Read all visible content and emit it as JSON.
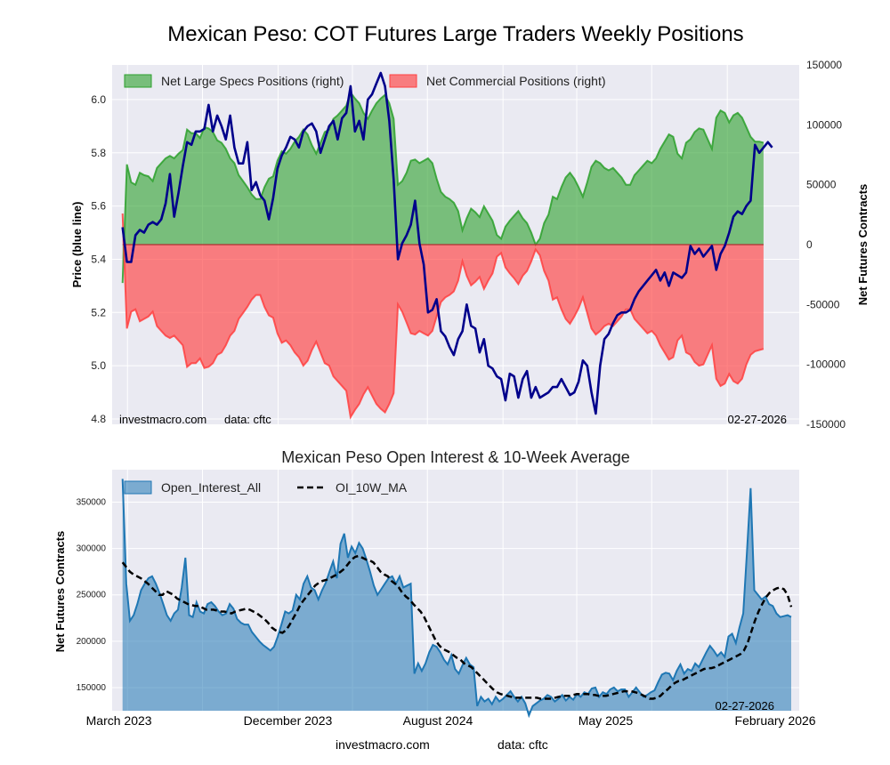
{
  "page": {
    "watermark": "investmacro.com",
    "data_note": "data: cftc",
    "date_stamp": "02-27-2026",
    "footer_site": "investmacro.com",
    "footer_data": "data: cftc"
  },
  "chart_data": [
    {
      "type": "area",
      "title": "Mexican Peso: COT Futures Large Traders Weekly Positions",
      "ylabel_left": "Price (blue line)",
      "ylabel_right": "Net Futures Contracts",
      "ylim_left": [
        4.78,
        6.13
      ],
      "ylim_right": [
        -150000,
        150000
      ],
      "yticks_left": [
        "4.8",
        "5.0",
        "5.2",
        "5.4",
        "5.6",
        "5.8",
        "6.0"
      ],
      "yticks_right": [
        "150000",
        "100000",
        "50000",
        "0",
        "-50000",
        "-100000",
        "-150000"
      ],
      "legend_position": "top-left",
      "grid": true,
      "x_start": "2023-03-07",
      "x_step_days": 7,
      "series": [
        {
          "name": "Net Large Specs Positions (right)",
          "color": "#2ca02c",
          "values": [
            -32000,
            67000,
            52000,
            50000,
            60000,
            58000,
            57000,
            53000,
            64000,
            68000,
            72000,
            74000,
            72000,
            76000,
            79000,
            96000,
            93000,
            93000,
            89000,
            98000,
            97000,
            94000,
            87000,
            85000,
            80000,
            72000,
            68000,
            58000,
            53000,
            48000,
            42000,
            38000,
            38000,
            48000,
            55000,
            57000,
            70000,
            78000,
            76000,
            80000,
            86000,
            90000,
            96000,
            92000,
            83000,
            76000,
            85000,
            94000,
            96000,
            105000,
            108000,
            112000,
            116000,
            127000,
            122000,
            118000,
            110000,
            105000,
            112000,
            118000,
            122000,
            125000,
            118000,
            105000,
            50000,
            53000,
            60000,
            70000,
            71000,
            68000,
            70000,
            72000,
            68000,
            55000,
            44000,
            40000,
            38000,
            35000,
            28000,
            12000,
            22000,
            30000,
            27000,
            23000,
            32000,
            26000,
            20000,
            8000,
            5000,
            15000,
            20000,
            24000,
            28000,
            22000,
            18000,
            10000,
            0,
            5000,
            18000,
            25000,
            40000,
            38000,
            48000,
            56000,
            60000,
            55000,
            48000,
            40000,
            52000,
            65000,
            70000,
            68000,
            64000,
            62000,
            64000,
            60000,
            56000,
            50000,
            50000,
            58000,
            62000,
            66000,
            70000,
            68000,
            72000,
            80000,
            86000,
            92000,
            90000,
            76000,
            72000,
            85000,
            88000,
            94000,
            97000,
            96000,
            88000,
            80000,
            106000,
            112000,
            110000,
            102000,
            108000,
            110000,
            106000,
            98000,
            90000,
            86000,
            86000,
            85000
          ]
        },
        {
          "name": "Net Commercial Positions (right)",
          "color": "#ff4040",
          "values": [
            26000,
            -70000,
            -56000,
            -54000,
            -64000,
            -62000,
            -60000,
            -56000,
            -68000,
            -72000,
            -76000,
            -78000,
            -76000,
            -80000,
            -84000,
            -102000,
            -99000,
            -99000,
            -95000,
            -103000,
            -102000,
            -99000,
            -92000,
            -90000,
            -84000,
            -76000,
            -72000,
            -62000,
            -57000,
            -52000,
            -46000,
            -42000,
            -42000,
            -52000,
            -59000,
            -61000,
            -74000,
            -82000,
            -80000,
            -84000,
            -90000,
            -94000,
            -101000,
            -97000,
            -88000,
            -81000,
            -90000,
            -99000,
            -101000,
            -110000,
            -114000,
            -118000,
            -122000,
            -144000,
            -138000,
            -133000,
            -125000,
            -119000,
            -126000,
            -133000,
            -137000,
            -140000,
            -133000,
            -124000,
            -50000,
            -56000,
            -65000,
            -74000,
            -75000,
            -72000,
            -74000,
            -76000,
            -72000,
            -60000,
            -48000,
            -44000,
            -42000,
            -39000,
            -30000,
            -14000,
            -26000,
            -34000,
            -31000,
            -27000,
            -37000,
            -30000,
            -24000,
            -10000,
            -7000,
            -19000,
            -24000,
            -28000,
            -33000,
            -26000,
            -22000,
            -14000,
            -4000,
            -9000,
            -22000,
            -30000,
            -46000,
            -44000,
            -54000,
            -62000,
            -66000,
            -60000,
            -53000,
            -44000,
            -57000,
            -70000,
            -75000,
            -72000,
            -68000,
            -66000,
            -68000,
            -64000,
            -60000,
            -54000,
            -54000,
            -62000,
            -66000,
            -70000,
            -74000,
            -72000,
            -76000,
            -84000,
            -90000,
            -96000,
            -94000,
            -80000,
            -76000,
            -90000,
            -92000,
            -98000,
            -101000,
            -100000,
            -92000,
            -84000,
            -112000,
            -118000,
            -116000,
            -108000,
            -114000,
            -116000,
            -112000,
            -100000,
            -92000,
            -89000,
            -88000,
            -87000
          ]
        },
        {
          "name": "Price",
          "color": "#00008b",
          "values": [
            5.52,
            5.39,
            5.39,
            5.49,
            5.51,
            5.5,
            5.53,
            5.54,
            5.53,
            5.55,
            5.61,
            5.72,
            5.56,
            5.65,
            5.75,
            5.84,
            5.83,
            5.88,
            5.88,
            5.89,
            5.98,
            5.88,
            5.94,
            5.9,
            5.85,
            5.94,
            5.82,
            5.76,
            5.76,
            5.84,
            5.66,
            5.69,
            5.64,
            5.62,
            5.55,
            5.63,
            5.74,
            5.79,
            5.82,
            5.86,
            5.85,
            5.82,
            5.88,
            5.9,
            5.91,
            5.88,
            5.8,
            5.85,
            5.9,
            5.92,
            5.85,
            5.93,
            5.95,
            6.05,
            5.88,
            5.92,
            5.85,
            6.0,
            6.02,
            6.06,
            6.1,
            6.05,
            5.92,
            5.7,
            5.4,
            5.46,
            5.49,
            5.53,
            5.62,
            5.46,
            5.38,
            5.2,
            5.21,
            5.25,
            5.13,
            5.11,
            5.07,
            5.04,
            5.1,
            5.13,
            5.23,
            5.15,
            5.14,
            5.05,
            5.1,
            5.0,
            4.99,
            4.96,
            4.95,
            4.87,
            4.97,
            4.96,
            4.88,
            4.95,
            4.98,
            4.88,
            4.92,
            4.88,
            4.89,
            4.9,
            4.92,
            4.92,
            4.95,
            4.92,
            4.89,
            4.9,
            4.94,
            5.02,
            5.0,
            4.9,
            4.82,
            5.0,
            5.1,
            5.12,
            5.16,
            5.19,
            5.2,
            5.2,
            5.21,
            5.25,
            5.28,
            5.3,
            5.32,
            5.34,
            5.36,
            5.32,
            5.35,
            5.3,
            5.35,
            5.34,
            5.33,
            5.35,
            5.45,
            5.42,
            5.44,
            5.41,
            5.43,
            5.45,
            5.36,
            5.42,
            5.45,
            5.5,
            5.56,
            5.58,
            5.57,
            5.6,
            5.62,
            5.83,
            5.8,
            5.82,
            5.84,
            5.82
          ]
        }
      ]
    },
    {
      "type": "area",
      "title": "Mexican Peso Open Interest & 10-Week Average",
      "ylabel": "Net Futures Contracts",
      "ylim": [
        125000,
        385000
      ],
      "yticks": [
        "150000",
        "200000",
        "250000",
        "300000",
        "350000"
      ],
      "legend_position": "top-left",
      "grid": true,
      "x_start": "2023-03-07",
      "x_step_days": 7,
      "xtick_labels": [
        "March 2023",
        "December 2023",
        "August 2024",
        "May 2025",
        "February 2026"
      ],
      "series": [
        {
          "name": "Open_Interest_All",
          "color": "#1f77b4",
          "values": [
            375000,
            262000,
            222000,
            228000,
            240000,
            255000,
            262000,
            268000,
            270000,
            262000,
            252000,
            240000,
            228000,
            222000,
            230000,
            234000,
            258000,
            290000,
            228000,
            226000,
            242000,
            232000,
            230000,
            240000,
            242000,
            238000,
            232000,
            228000,
            230000,
            240000,
            235000,
            224000,
            220000,
            218000,
            218000,
            210000,
            205000,
            200000,
            196000,
            193000,
            190000,
            194000,
            205000,
            218000,
            232000,
            230000,
            233000,
            250000,
            245000,
            262000,
            270000,
            258000,
            255000,
            245000,
            255000,
            263000,
            275000,
            286000,
            268000,
            305000,
            316000,
            290000,
            302000,
            295000,
            306000,
            300000,
            288000,
            275000,
            260000,
            250000,
            256000,
            262000,
            268000,
            270000,
            262000,
            270000,
            258000,
            260000,
            262000,
            165000,
            176000,
            168000,
            176000,
            188000,
            196000,
            194000,
            188000,
            180000,
            175000,
            185000,
            170000,
            165000,
            174000,
            182000,
            175000,
            172000,
            130000,
            140000,
            135000,
            138000,
            132000,
            140000,
            135000,
            138000,
            142000,
            146000,
            140000,
            135000,
            140000,
            133000,
            120000,
            130000,
            133000,
            136000,
            138000,
            142000,
            140000,
            135000,
            138000,
            142000,
            136000,
            140000,
            137000,
            143000,
            140000,
            145000,
            143000,
            149000,
            150000,
            140000,
            145000,
            143000,
            148000,
            150000,
            146000,
            148000,
            148000,
            140000,
            145000,
            150000,
            145000,
            140000,
            142000,
            145000,
            147000,
            156000,
            164000,
            166000,
            165000,
            158000,
            168000,
            175000,
            165000,
            170000,
            168000,
            176000,
            172000,
            180000,
            188000,
            195000,
            190000,
            184000,
            188000,
            183000,
            205000,
            208000,
            198000,
            215000,
            230000,
            295000,
            365000,
            255000,
            250000,
            245000,
            248000,
            240000,
            238000,
            230000,
            226000,
            227000,
            228000,
            226000
          ]
        },
        {
          "name": "OI_10W_MA",
          "color": "#000000",
          "values": [
            285000,
            280000,
            275000,
            272000,
            270000,
            268000,
            265000,
            262000,
            258000,
            254000,
            250000,
            250000,
            254000,
            252000,
            250000,
            246000,
            244000,
            242000,
            240000,
            239000,
            238000,
            238000,
            236000,
            234000,
            234000,
            234000,
            233000,
            232000,
            232000,
            231000,
            230000,
            232000,
            233000,
            234000,
            235000,
            234000,
            232000,
            230000,
            227000,
            224000,
            220000,
            215000,
            212000,
            210000,
            209000,
            212000,
            218000,
            225000,
            232000,
            240000,
            245000,
            250000,
            255000,
            260000,
            263000,
            265000,
            266000,
            268000,
            270000,
            272000,
            275000,
            278000,
            283000,
            288000,
            291000,
            292000,
            290000,
            288000,
            287000,
            285000,
            280000,
            275000,
            272000,
            270000,
            265000,
            262000,
            258000,
            252000,
            248000,
            245000,
            240000,
            236000,
            232000,
            226000,
            218000,
            210000,
            202000,
            196000,
            192000,
            190000,
            188000,
            185000,
            182000,
            180000,
            176000,
            174000,
            172000,
            168000,
            164000,
            160000,
            156000,
            152000,
            148000,
            145000,
            143000,
            142000,
            141000,
            140000,
            139000,
            139000,
            139000,
            139000,
            139000,
            139000,
            139000,
            138000,
            138000,
            138000,
            138000,
            139000,
            140000,
            141000,
            141000,
            141000,
            142000,
            143000,
            143000,
            143000,
            143000,
            142000,
            142000,
            141000,
            141000,
            141000,
            142000,
            143000,
            144000,
            145000,
            146000,
            146000,
            146000,
            145000,
            144000,
            142000,
            140000,
            138000,
            138000,
            139000,
            141000,
            145000,
            148000,
            152000,
            155000,
            157000,
            158000,
            160000,
            162000,
            164000,
            166000,
            168000,
            170000,
            171000,
            171000,
            172000,
            174000,
            176000,
            178000,
            180000,
            182000,
            184000,
            186000,
            190000,
            198000,
            210000,
            222000,
            232000,
            240000,
            247000,
            252000,
            255000,
            257000,
            258000,
            256000,
            250000,
            237000
          ]
        }
      ]
    }
  ]
}
